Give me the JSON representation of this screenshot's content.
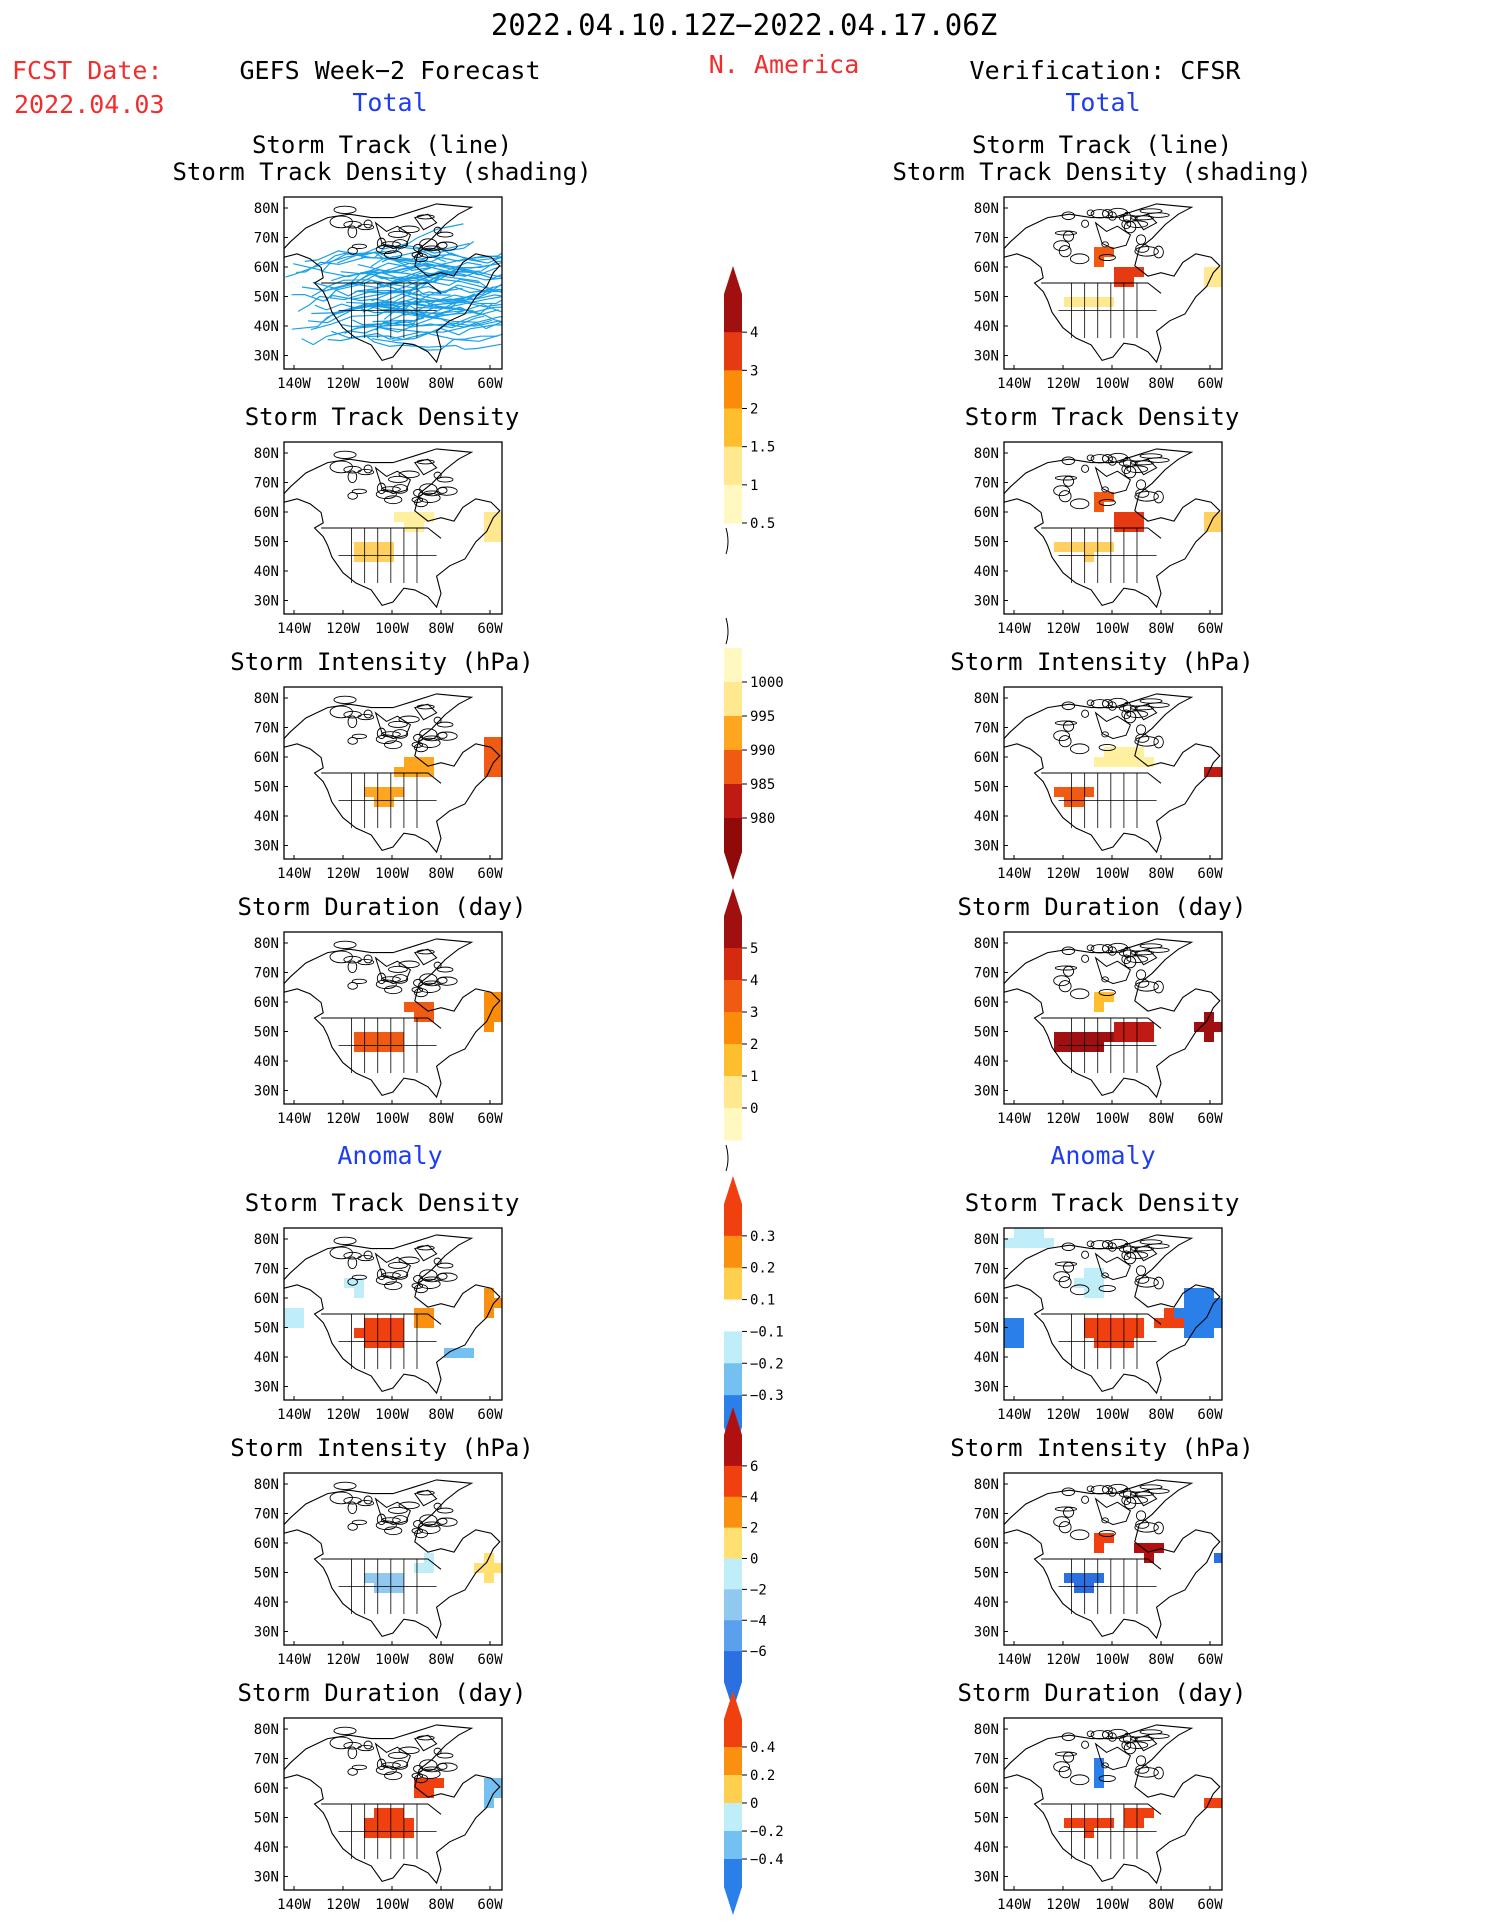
{
  "header": {
    "date_range": "2022.04.10.12Z−2022.04.17.06Z",
    "fcst_label": "FCST Date:",
    "fcst_date": "2022.04.03",
    "region": "N. America",
    "left_title": "GEFS Week−2 Forecast",
    "right_title": "Verification: CFSR",
    "total_label": "Total",
    "anomaly_label": "Anomaly"
  },
  "panel_titles": {
    "track_line": "Storm Track (line)",
    "track_shading": "Storm Track Density (shading)",
    "density": "Storm Track Density",
    "intensity": "Storm Intensity (hPa)",
    "duration": "Storm Duration (day)"
  },
  "axes": {
    "lat_labels": [
      "80N",
      "70N",
      "60N",
      "50N",
      "40N",
      "30N"
    ],
    "lon_labels": [
      "140W",
      "120W",
      "100W",
      "80W",
      "60W"
    ]
  },
  "colorbars": [
    {
      "id": "density_total",
      "labels": [
        "4",
        "3",
        "2",
        "1.5",
        "1",
        "0.5"
      ],
      "colors": [
        "#a01010",
        "#e63a12",
        "#fa8c0a",
        "#ffbe2e",
        "#ffe890",
        "#fff8c0"
      ]
    },
    {
      "id": "intensity_total",
      "labels": [
        "1000",
        "995",
        "990",
        "985",
        "980"
      ],
      "colors": [
        "#fff8c0",
        "#ffe890",
        "#ffa620",
        "#f05a12",
        "#c01a14",
        "#900a0a"
      ]
    },
    {
      "id": "duration_total",
      "labels": [
        "5",
        "4",
        "3",
        "2",
        "1",
        "0"
      ],
      "colors": [
        "#a01010",
        "#d42a10",
        "#f05a12",
        "#fa8c0a",
        "#ffbe2e",
        "#ffe890",
        "#fff8c0"
      ]
    },
    {
      "id": "density_anom",
      "labels": [
        "0.3",
        "0.2",
        "0.1",
        "−0.1",
        "−0.2",
        "−0.3"
      ],
      "colors": [
        "#f04010",
        "#fa9010",
        "#ffd050",
        "#ffffff",
        "#bfeef8",
        "#74c0f0",
        "#2a80e8"
      ]
    },
    {
      "id": "intensity_anom",
      "labels": [
        "6",
        "4",
        "2",
        "0",
        "−2",
        "−4",
        "−6"
      ],
      "colors": [
        "#b01010",
        "#f04010",
        "#fa9010",
        "#ffe070",
        "#bfeef8",
        "#90c8f0",
        "#5aa0ec",
        "#2a70e0"
      ]
    },
    {
      "id": "duration_anom",
      "labels": [
        "0.4",
        "0.2",
        "0",
        "−0.2",
        "−0.4"
      ],
      "colors": [
        "#f04010",
        "#fa9010",
        "#ffd050",
        "#bfeef8",
        "#74c0f0",
        "#2a80e8"
      ]
    }
  ],
  "colors": {
    "header_red": "#f02e2e",
    "header_blue": "#1f3df0",
    "track_line": "#1aa0e8"
  },
  "icons": [
    "map-coastline-outline"
  ]
}
